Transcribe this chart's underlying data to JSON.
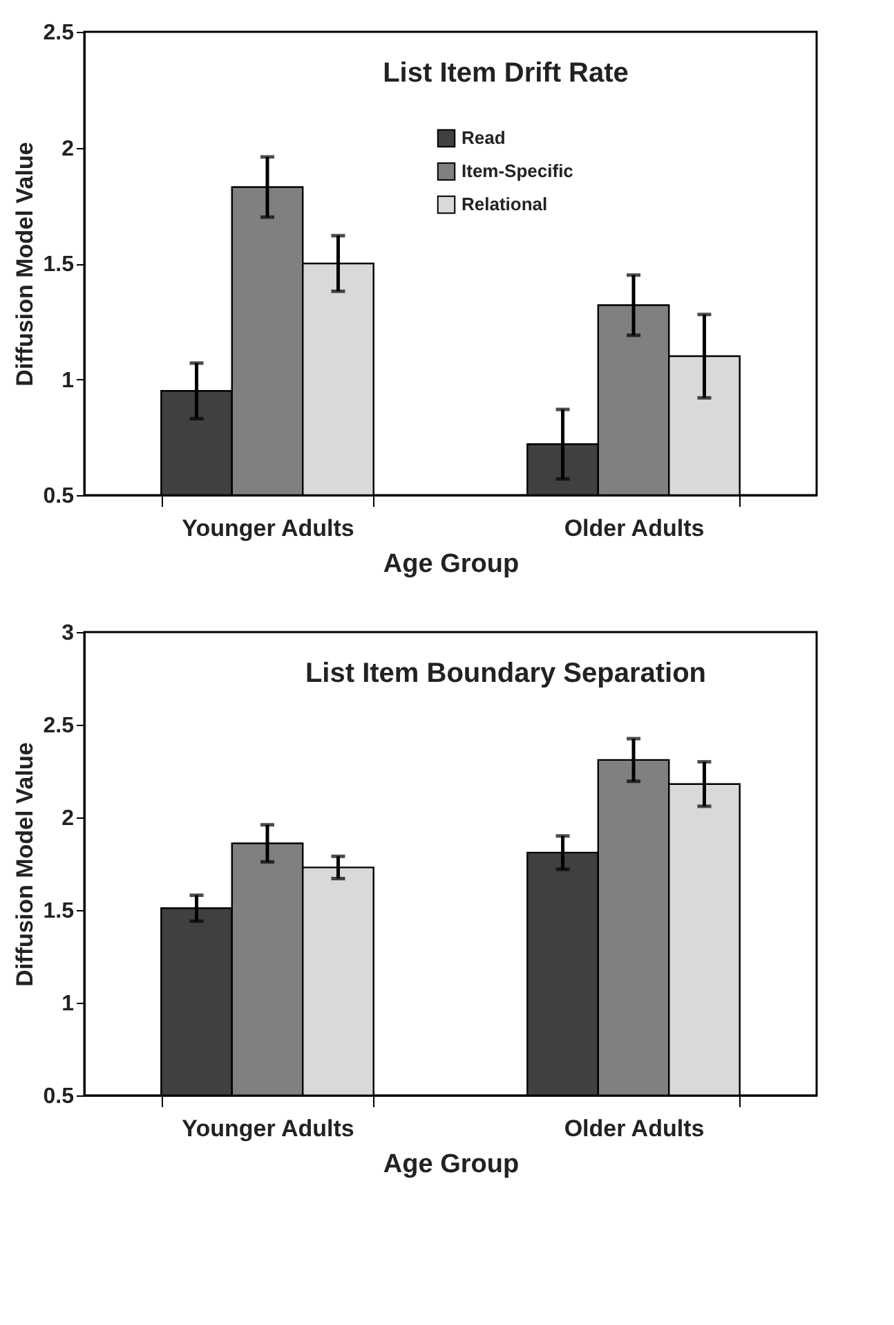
{
  "chart_data": [
    {
      "type": "bar",
      "title": "List Item Drift Rate",
      "xlabel": "Age Group",
      "ylabel": "Diffusion Model Value",
      "categories": [
        "Younger Adults",
        "Older Adults"
      ],
      "ylim": [
        0.5,
        2.5
      ],
      "yticks": [
        0.5,
        1,
        1.5,
        2,
        2.5
      ],
      "grid": false,
      "legend": "top",
      "series": [
        {
          "name": "Read",
          "color": "#404040",
          "values": [
            0.95,
            0.72
          ],
          "errors": [
            0.12,
            0.15
          ]
        },
        {
          "name": "Item-Specific",
          "color": "#808080",
          "values": [
            1.83,
            1.32
          ],
          "errors": [
            0.13,
            0.13
          ]
        },
        {
          "name": "Relational",
          "color": "#d9d9d9",
          "values": [
            1.5,
            1.1
          ],
          "errors": [
            0.12,
            0.18
          ]
        }
      ]
    },
    {
      "type": "bar",
      "title": "List Item Boundary Separation",
      "xlabel": "Age Group",
      "ylabel": "Diffusion Model Value",
      "categories": [
        "Younger Adults",
        "Older Adults"
      ],
      "ylim": [
        0.5,
        3
      ],
      "yticks": [
        0.5,
        1,
        1.5,
        2,
        2.5,
        3
      ],
      "grid": false,
      "legend": "top",
      "series": [
        {
          "name": "Read",
          "color": "#404040",
          "values": [
            1.51,
            1.81
          ],
          "errors": [
            0.07,
            0.09
          ]
        },
        {
          "name": "Item-Specific",
          "color": "#808080",
          "values": [
            1.86,
            2.31
          ],
          "errors": [
            0.1,
            0.115
          ]
        },
        {
          "name": "Relational",
          "color": "#d9d9d9",
          "values": [
            1.73,
            2.18
          ],
          "errors": [
            0.06,
            0.12
          ]
        }
      ]
    }
  ]
}
